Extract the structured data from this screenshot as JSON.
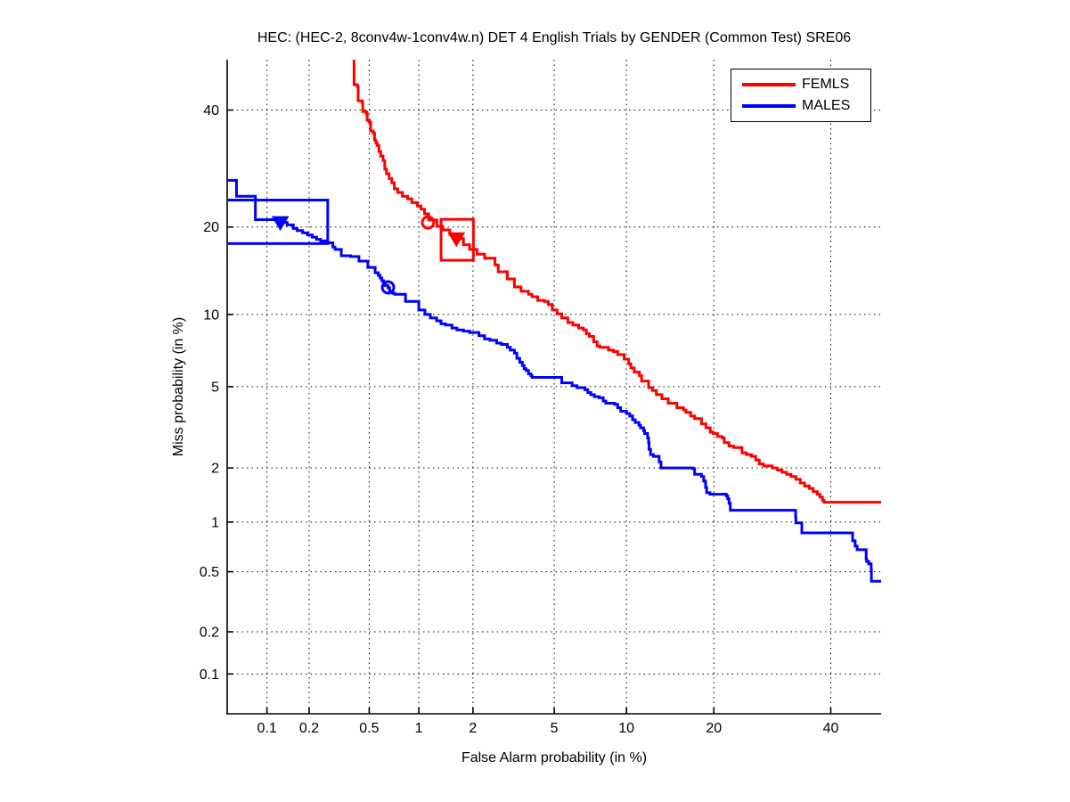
{
  "chart_data": {
    "type": "line",
    "subtype": "DET-curve (normal-deviate / probit scaled axes)",
    "title": "HEC: (HEC-2, 8conv4w-1conv4w.n) DET 4 English Trials by GENDER (Common Test) SRE06",
    "xlabel": "False Alarm probability (in %)",
    "ylabel": "Miss probability (in %)",
    "xlim_pct": [
      0.05,
      50
    ],
    "ylim_pct": [
      0.05,
      50
    ],
    "x_tick_values": [
      0.1,
      0.2,
      0.5,
      1,
      2,
      5,
      10,
      20,
      40
    ],
    "x_tick_labels": [
      "0.1",
      "0.2",
      "0.5",
      "1",
      "2",
      "5",
      "10",
      "20",
      "40"
    ],
    "y_tick_values": [
      0.1,
      0.2,
      0.5,
      1,
      2,
      5,
      10,
      20,
      40
    ],
    "y_tick_labels": [
      "0.1",
      "0.2",
      "0.5",
      "1",
      "2",
      "5",
      "10",
      "20",
      "40"
    ],
    "grid": "dotted",
    "grid_color": "#000000",
    "axis_color": "#000000",
    "background": "#ffffff",
    "legend_position": "top-right",
    "series": [
      {
        "name": "FEMLS",
        "color": "#ff0000",
        "marker_circle_fa_miss": [
          1.13,
          20.65
        ],
        "marker_triangle_fa_miss": [
          1.63,
          18.4
        ],
        "box_fa": [
          1.34,
          2.01
        ],
        "box_miss": [
          15.65,
          21.1
        ],
        "points": [
          [
            0.4,
            50
          ],
          [
            0.4,
            45.0
          ],
          [
            0.42,
            44.6
          ],
          [
            0.425,
            41.8
          ],
          [
            0.45,
            41.5
          ],
          [
            0.455,
            39.7
          ],
          [
            0.48,
            39.4
          ],
          [
            0.485,
            38.0
          ],
          [
            0.5,
            37.7
          ],
          [
            0.51,
            36.0
          ],
          [
            0.53,
            35.6
          ],
          [
            0.54,
            34.3
          ],
          [
            0.55,
            33.8
          ],
          [
            0.56,
            33.3
          ],
          [
            0.575,
            32.2
          ],
          [
            0.59,
            31.4
          ],
          [
            0.61,
            30.6
          ],
          [
            0.625,
            29.1
          ],
          [
            0.64,
            28.3
          ],
          [
            0.665,
            27.5
          ],
          [
            0.69,
            26.8
          ],
          [
            0.715,
            25.8
          ],
          [
            0.75,
            25.2
          ],
          [
            0.8,
            24.6
          ],
          [
            0.86,
            24.2
          ],
          [
            0.91,
            23.6
          ],
          [
            0.98,
            23.1
          ],
          [
            1.03,
            22.6
          ],
          [
            1.08,
            21.9
          ],
          [
            1.14,
            21.0
          ],
          [
            1.27,
            20.1
          ],
          [
            1.37,
            19.6
          ],
          [
            1.5,
            19.0
          ],
          [
            1.63,
            18.4
          ],
          [
            1.78,
            17.6
          ],
          [
            1.92,
            17.0
          ],
          [
            2.1,
            16.4
          ],
          [
            2.3,
            15.9
          ],
          [
            2.6,
            15.1
          ],
          [
            2.7,
            14.3
          ],
          [
            3.0,
            13.5
          ],
          [
            3.25,
            12.65
          ],
          [
            3.5,
            12.2
          ],
          [
            3.8,
            11.9
          ],
          [
            3.95,
            11.65
          ],
          [
            4.2,
            11.3
          ],
          [
            4.5,
            11.2
          ],
          [
            4.7,
            10.9
          ],
          [
            4.9,
            10.4
          ],
          [
            5.15,
            10.05
          ],
          [
            5.4,
            9.7
          ],
          [
            5.75,
            9.3
          ],
          [
            6.05,
            9.1
          ],
          [
            6.4,
            8.85
          ],
          [
            6.7,
            8.7
          ],
          [
            6.9,
            8.4
          ],
          [
            7.1,
            8.2
          ],
          [
            7.4,
            7.8
          ],
          [
            7.65,
            7.5
          ],
          [
            7.85,
            7.4
          ],
          [
            8.5,
            7.2
          ],
          [
            8.9,
            7.1
          ],
          [
            9.25,
            6.9
          ],
          [
            9.8,
            6.6
          ],
          [
            10.2,
            6.3
          ],
          [
            10.4,
            6.05
          ],
          [
            10.7,
            5.8
          ],
          [
            11.2,
            5.6
          ],
          [
            11.4,
            5.3
          ],
          [
            12.1,
            4.95
          ],
          [
            12.5,
            4.8
          ],
          [
            12.9,
            4.6
          ],
          [
            13.5,
            4.4
          ],
          [
            14.2,
            4.2
          ],
          [
            14.9,
            4.2
          ],
          [
            15.2,
            4.0
          ],
          [
            16.0,
            3.9
          ],
          [
            16.3,
            3.8
          ],
          [
            16.9,
            3.65
          ],
          [
            17.4,
            3.55
          ],
          [
            18.3,
            3.35
          ],
          [
            18.9,
            3.2
          ],
          [
            19.5,
            3.05
          ],
          [
            19.9,
            3.0
          ],
          [
            20.5,
            2.9
          ],
          [
            21.2,
            2.85
          ],
          [
            21.5,
            2.7
          ],
          [
            22.2,
            2.6
          ],
          [
            22.9,
            2.55
          ],
          [
            23.5,
            2.55
          ],
          [
            24.2,
            2.4
          ],
          [
            24.9,
            2.35
          ],
          [
            25.7,
            2.3
          ],
          [
            26.4,
            2.2
          ],
          [
            27.0,
            2.1
          ],
          [
            27.7,
            2.05
          ],
          [
            29.2,
            2.0
          ],
          [
            30.1,
            1.95
          ],
          [
            30.9,
            1.9
          ],
          [
            31.7,
            1.85
          ],
          [
            32.5,
            1.8
          ],
          [
            33.4,
            1.74
          ],
          [
            34.2,
            1.66
          ],
          [
            35.0,
            1.6
          ],
          [
            35.9,
            1.55
          ],
          [
            36.6,
            1.49
          ],
          [
            37.4,
            1.44
          ],
          [
            37.9,
            1.39
          ],
          [
            38.4,
            1.33
          ],
          [
            38.7,
            1.3
          ],
          [
            50,
            1.3
          ]
        ]
      },
      {
        "name": "MALES",
        "color": "#0000ff",
        "marker_circle_fa_miss": [
          0.655,
          12.6
        ],
        "marker_triangle_fa_miss": [
          0.125,
          20.65
        ],
        "box_fa": [
          0.04,
          0.268
        ],
        "box_miss": [
          17.75,
          24.0
        ],
        "box_clipped_left": true,
        "points": [
          [
            0.05,
            27.2
          ],
          [
            0.059,
            27.2
          ],
          [
            0.059,
            24.6
          ],
          [
            0.082,
            24.6
          ],
          [
            0.082,
            21.05
          ],
          [
            0.105,
            21.05
          ],
          [
            0.125,
            20.65
          ],
          [
            0.14,
            20.3
          ],
          [
            0.155,
            19.8
          ],
          [
            0.165,
            19.5
          ],
          [
            0.18,
            19.2
          ],
          [
            0.195,
            18.9
          ],
          [
            0.21,
            18.6
          ],
          [
            0.225,
            18.3
          ],
          [
            0.24,
            18.1
          ],
          [
            0.268,
            17.85
          ],
          [
            0.29,
            17.3
          ],
          [
            0.3,
            17.0
          ],
          [
            0.33,
            16.2
          ],
          [
            0.38,
            16.1
          ],
          [
            0.43,
            15.55
          ],
          [
            0.49,
            14.8
          ],
          [
            0.545,
            14.2
          ],
          [
            0.57,
            13.9
          ],
          [
            0.585,
            13.6
          ],
          [
            0.6,
            13.3
          ],
          [
            0.615,
            13.0
          ],
          [
            0.63,
            12.8
          ],
          [
            0.655,
            12.55
          ],
          [
            0.67,
            12.2
          ],
          [
            0.7,
            12.0
          ],
          [
            0.72,
            11.9
          ],
          [
            0.835,
            11.2
          ],
          [
            1.0,
            10.4
          ],
          [
            1.085,
            10.0
          ],
          [
            1.165,
            9.7
          ],
          [
            1.265,
            9.45
          ],
          [
            1.34,
            9.2
          ],
          [
            1.42,
            9.1
          ],
          [
            1.54,
            8.85
          ],
          [
            1.64,
            8.7
          ],
          [
            1.78,
            8.6
          ],
          [
            1.92,
            8.5
          ],
          [
            2.15,
            8.25
          ],
          [
            2.3,
            8.0
          ],
          [
            2.45,
            7.9
          ],
          [
            2.65,
            7.7
          ],
          [
            2.8,
            7.6
          ],
          [
            3.0,
            7.4
          ],
          [
            3.1,
            7.2
          ],
          [
            3.25,
            7.0
          ],
          [
            3.34,
            6.65
          ],
          [
            3.45,
            6.4
          ],
          [
            3.55,
            6.2
          ],
          [
            3.62,
            6.0
          ],
          [
            3.7,
            5.9
          ],
          [
            3.8,
            5.7
          ],
          [
            3.9,
            5.6
          ],
          [
            3.95,
            5.5
          ],
          [
            5.25,
            5.5
          ],
          [
            5.4,
            5.2
          ],
          [
            5.8,
            5.2
          ],
          [
            6.0,
            5.05
          ],
          [
            6.3,
            4.95
          ],
          [
            6.8,
            4.85
          ],
          [
            7.0,
            4.7
          ],
          [
            7.2,
            4.6
          ],
          [
            7.45,
            4.5
          ],
          [
            7.8,
            4.45
          ],
          [
            8.1,
            4.3
          ],
          [
            8.3,
            4.2
          ],
          [
            8.5,
            4.2
          ],
          [
            9.0,
            4.15
          ],
          [
            9.25,
            4.0
          ],
          [
            9.5,
            3.85
          ],
          [
            9.75,
            3.85
          ],
          [
            10.0,
            3.75
          ],
          [
            10.3,
            3.65
          ],
          [
            10.55,
            3.5
          ],
          [
            10.8,
            3.4
          ],
          [
            11.15,
            3.3
          ],
          [
            11.3,
            3.2
          ],
          [
            11.6,
            3.1
          ],
          [
            11.7,
            3.0
          ],
          [
            12.0,
            2.85
          ],
          [
            12.1,
            2.7
          ],
          [
            12.15,
            2.5
          ],
          [
            12.3,
            2.35
          ],
          [
            12.6,
            2.3
          ],
          [
            13.2,
            2.15
          ],
          [
            13.4,
            2.0
          ],
          [
            17.2,
            1.98
          ],
          [
            17.4,
            1.85
          ],
          [
            18.3,
            1.8
          ],
          [
            18.6,
            1.7
          ],
          [
            18.85,
            1.57
          ],
          [
            19.0,
            1.47
          ],
          [
            19.45,
            1.44
          ],
          [
            21.5,
            1.44
          ],
          [
            21.8,
            1.41
          ],
          [
            22.0,
            1.36
          ],
          [
            22.2,
            1.28
          ],
          [
            22.4,
            1.17
          ],
          [
            33.2,
            1.17
          ],
          [
            33.35,
            1.07
          ],
          [
            33.4,
            0.99
          ],
          [
            34.2,
            0.99
          ],
          [
            34.5,
            0.865
          ],
          [
            44.0,
            0.865
          ],
          [
            44.3,
            0.775
          ],
          [
            44.8,
            0.72
          ],
          [
            45.2,
            0.685
          ],
          [
            47.0,
            0.6
          ],
          [
            47.1,
            0.58
          ],
          [
            47.5,
            0.56
          ],
          [
            48.0,
            0.51
          ],
          [
            48.05,
            0.435
          ],
          [
            50,
            0.43
          ]
        ]
      }
    ]
  }
}
